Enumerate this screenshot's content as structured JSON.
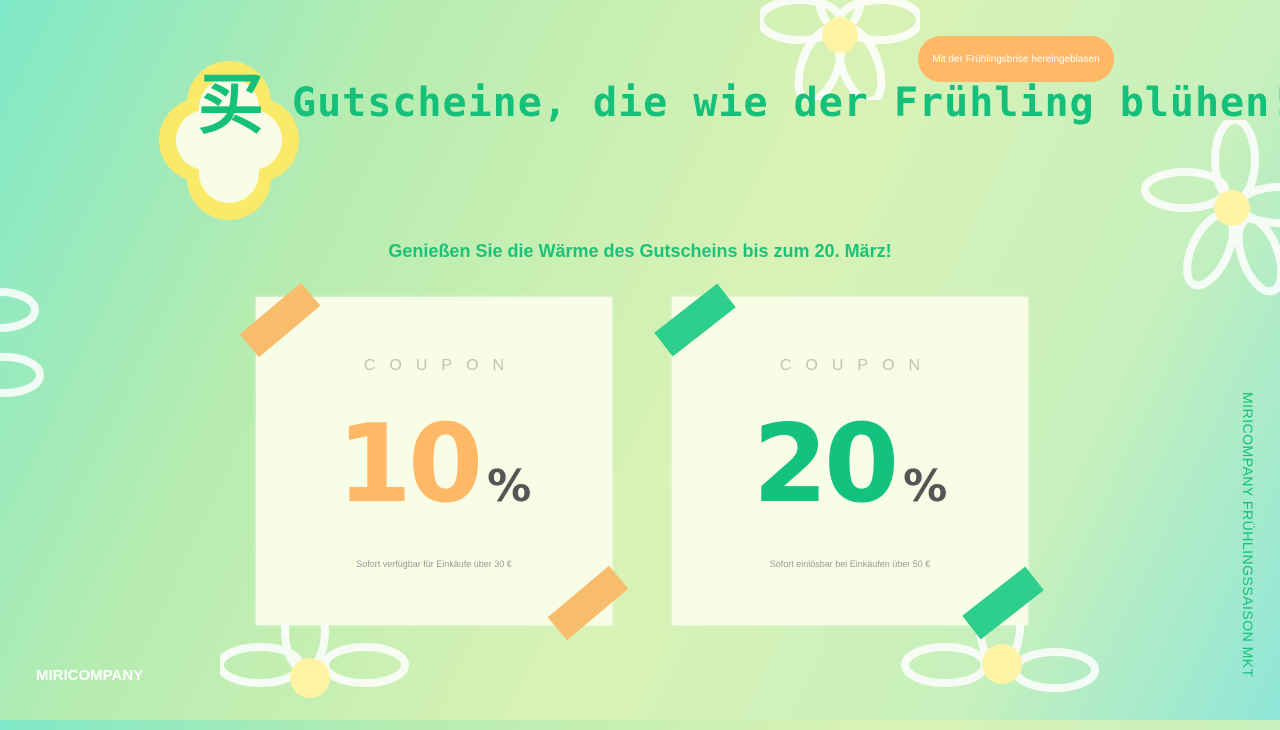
{
  "logo": {
    "glyph": "买"
  },
  "badge": "Mit der Frühlingsbrise hereingeblasen",
  "title": "Gutscheine, die wie der Frühling blühen!",
  "subtitle": "Genießen Sie die Wärme des Gutscheins bis zum 20. März!",
  "coupons": [
    {
      "label": "COUPON",
      "value": "10",
      "unit": "%",
      "condition": "Sofort verfügbar für Einkäufe über 30 €",
      "color": "#ffb865"
    },
    {
      "label": "COUPON",
      "value": "20",
      "unit": "%",
      "condition": "Sofort einlösbar bei Einkäufen über 50 €",
      "color": "#12c27e"
    }
  ],
  "footer": {
    "brand": "MIRICOMPANY",
    "side_text": "MIRICOMPANY FRÜHLINGSSAISON MKT"
  }
}
